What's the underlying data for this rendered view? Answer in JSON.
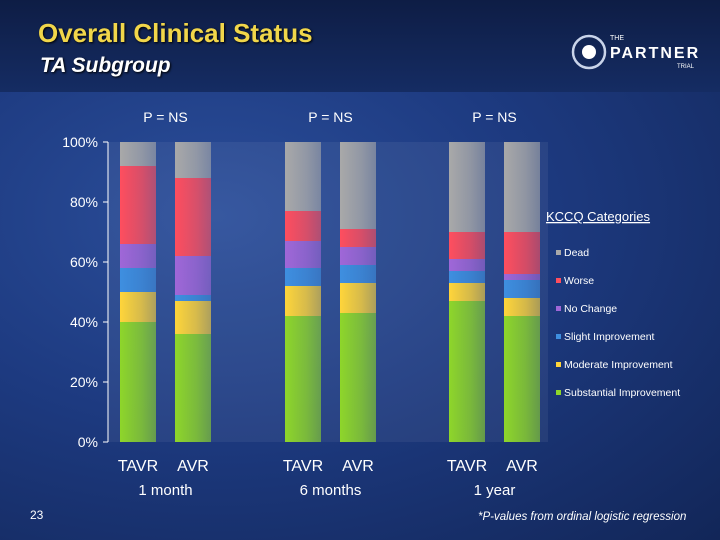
{
  "slide": {
    "title": "Overall Clinical Status",
    "subtitle": "TA Subgroup",
    "page_number": "23",
    "footnote": "*P-values from ordinal logistic regression",
    "logo": {
      "top": "THE",
      "main": "PARTNER",
      "bottom": "TRIAL"
    }
  },
  "chart_data": {
    "type": "bar",
    "stacked": true,
    "categories": [
      "TAVR",
      "AVR",
      "TAVR",
      "AVR",
      "TAVR",
      "AVR"
    ],
    "groups": [
      {
        "label": "1 month",
        "p_value": "P = NS"
      },
      {
        "label": "6 months",
        "p_value": "P = NS"
      },
      {
        "label": "1 year",
        "p_value": "P = NS"
      }
    ],
    "ylim": [
      0,
      100
    ],
    "yticks": [
      "0%",
      "20%",
      "40%",
      "60%",
      "80%",
      "100%"
    ],
    "legend_title": "KCCQ Categories",
    "legend_position": "right",
    "series": [
      {
        "name": "Substantial Improvement",
        "color": "#8ed62a",
        "values": [
          40,
          36,
          42,
          43,
          47,
          42
        ]
      },
      {
        "name": "Moderate Improvement",
        "color": "#ffd53a",
        "values": [
          10,
          11,
          10,
          10,
          6,
          6
        ]
      },
      {
        "name": "Slight Improvement",
        "color": "#3e8fe0",
        "values": [
          8,
          2,
          6,
          6,
          4,
          6
        ]
      },
      {
        "name": "No Change",
        "color": "#a067d8",
        "values": [
          8,
          13,
          9,
          6,
          4,
          2
        ]
      },
      {
        "name": "Worse",
        "color": "#ff4e5e",
        "values": [
          26,
          26,
          10,
          6,
          9,
          14
        ]
      },
      {
        "name": "Dead",
        "color": "#a9a9a9",
        "values": [
          8,
          12,
          23,
          29,
          30,
          30
        ]
      }
    ]
  }
}
